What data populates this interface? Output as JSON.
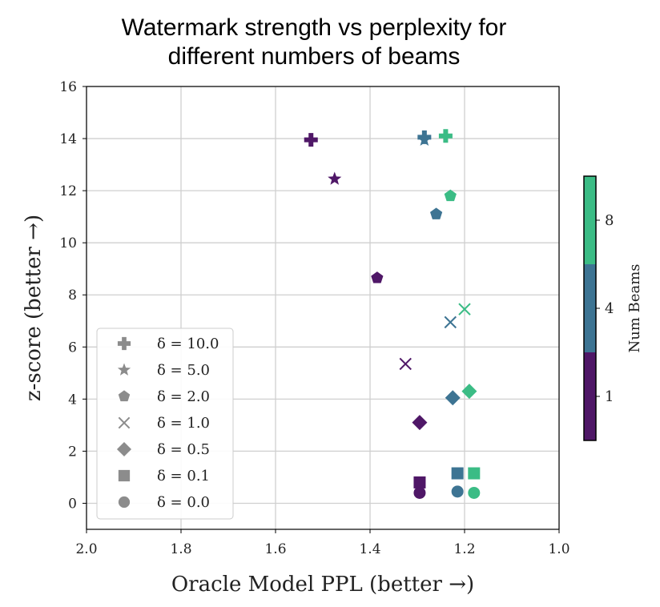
{
  "chart_data": {
    "type": "scatter",
    "title_lines": [
      "Watermark strength vs perplexity for",
      "different numbers of beams"
    ],
    "xlabel": "Oracle Model PPL (better →)",
    "ylabel": "z-score (better →)",
    "xlim": [
      2.0,
      1.0
    ],
    "ylim": [
      -1,
      16
    ],
    "x_inverted": true,
    "x_ticks": [
      2.0,
      1.8,
      1.6,
      1.4,
      1.2,
      1.0
    ],
    "x_tick_labels": [
      "2.0",
      "1.8",
      "1.6",
      "1.4",
      "1.2",
      "1.0"
    ],
    "y_ticks": [
      0,
      2,
      4,
      6,
      8,
      10,
      12,
      14,
      16
    ],
    "y_tick_labels": [
      "0",
      "2",
      "4",
      "6",
      "8",
      "10",
      "12",
      "14",
      "16"
    ],
    "grid": true,
    "legend_position": "lower-left",
    "legend": [
      {
        "marker": "plus",
        "label": "δ = 10.0"
      },
      {
        "marker": "star",
        "label": "δ = 5.0"
      },
      {
        "marker": "pentagon",
        "label": "δ = 2.0"
      },
      {
        "marker": "x",
        "label": "δ = 1.0"
      },
      {
        "marker": "diamond",
        "label": "δ = 0.5"
      },
      {
        "marker": "square",
        "label": "δ = 0.1"
      },
      {
        "marker": "circle",
        "label": "δ = 0.0"
      }
    ],
    "legend_marker_color": "#8c8c8c",
    "colorbar": {
      "label": "Num Beams",
      "bands": [
        {
          "beams": 1,
          "label": "1",
          "color": "#4f1767"
        },
        {
          "beams": 4,
          "label": "4",
          "color": "#3d7493"
        },
        {
          "beams": 8,
          "label": "8",
          "color": "#3bbc85"
        }
      ]
    },
    "series": [
      {
        "beams": 1,
        "color": "#4f1767",
        "points": [
          {
            "delta": 10.0,
            "marker": "plus",
            "x": 1.525,
            "y": 13.95
          },
          {
            "delta": 5.0,
            "marker": "star",
            "x": 1.475,
            "y": 12.45
          },
          {
            "delta": 2.0,
            "marker": "pentagon",
            "x": 1.385,
            "y": 8.65
          },
          {
            "delta": 1.0,
            "marker": "x",
            "x": 1.325,
            "y": 5.35
          },
          {
            "delta": 0.5,
            "marker": "diamond",
            "x": 1.295,
            "y": 3.1
          },
          {
            "delta": 0.1,
            "marker": "square",
            "x": 1.295,
            "y": 0.8
          },
          {
            "delta": 0.0,
            "marker": "circle",
            "x": 1.295,
            "y": 0.4
          }
        ]
      },
      {
        "beams": 4,
        "color": "#3d7493",
        "points": [
          {
            "delta": 10.0,
            "marker": "plus",
            "x": 1.285,
            "y": 14.05
          },
          {
            "delta": 5.0,
            "marker": "star",
            "x": 1.285,
            "y": 13.95
          },
          {
            "delta": 2.0,
            "marker": "pentagon",
            "x": 1.26,
            "y": 11.1
          },
          {
            "delta": 1.0,
            "marker": "x",
            "x": 1.23,
            "y": 6.95
          },
          {
            "delta": 0.5,
            "marker": "diamond",
            "x": 1.225,
            "y": 4.05
          },
          {
            "delta": 0.1,
            "marker": "square",
            "x": 1.215,
            "y": 1.15
          },
          {
            "delta": 0.0,
            "marker": "circle",
            "x": 1.215,
            "y": 0.45
          }
        ]
      },
      {
        "beams": 8,
        "color": "#3bbc85",
        "points": [
          {
            "delta": 10.0,
            "marker": "plus",
            "x": 1.24,
            "y": 14.1
          },
          {
            "delta": 2.0,
            "marker": "pentagon",
            "x": 1.23,
            "y": 11.8
          },
          {
            "delta": 1.0,
            "marker": "x",
            "x": 1.2,
            "y": 7.45
          },
          {
            "delta": 0.5,
            "marker": "diamond",
            "x": 1.19,
            "y": 4.3
          },
          {
            "delta": 0.1,
            "marker": "square",
            "x": 1.18,
            "y": 1.15
          },
          {
            "delta": 0.0,
            "marker": "circle",
            "x": 1.18,
            "y": 0.4
          }
        ]
      }
    ]
  }
}
